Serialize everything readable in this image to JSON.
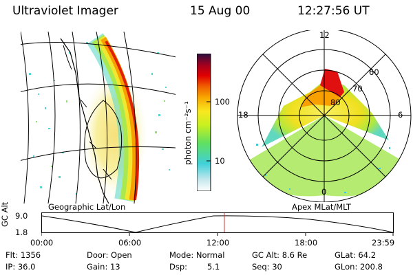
{
  "header": {
    "instrument": "Ultraviolet Imager",
    "date": "15 Aug 00",
    "time": "12:27:56 UT"
  },
  "colorbar": {
    "unit_label": "photon cm⁻²s⁻¹",
    "ticks": [
      "100",
      "10"
    ]
  },
  "left_panel": {
    "caption": "Geographic Lat/Lon"
  },
  "right_panel": {
    "caption": "Apex MLat/MLT",
    "mlt_labels": [
      "12",
      "18",
      "6",
      "0"
    ],
    "lat_labels": [
      "60",
      "70",
      "80"
    ]
  },
  "altitude_plot": {
    "ylabel": "GC Alt",
    "yticks": [
      "9.0",
      "1.8"
    ],
    "xticks": [
      "00:00",
      "06:00",
      "12:00",
      "18:00",
      "23:59"
    ],
    "current_time_fraction": 0.5194
  },
  "info": {
    "flt": "Flt: 1356",
    "ip": "IP: 36.0",
    "door": "Door: Open",
    "gain": "Gain: 13",
    "mode": "Mode: Normal",
    "dsp": "Dsp:",
    "dsp_val": "5.1",
    "gcalt": "GC Alt: 8.6 Re",
    "seq": "Seq: 30",
    "glat": "GLat:  64.2",
    "glon": "GLon: 200.8"
  },
  "colors": {
    "red_marker": "#dd2222",
    "scale": [
      "#ffffff",
      "#c8e8ee",
      "#40d0d8",
      "#60e060",
      "#c8f020",
      "#f8e820",
      "#f8a800",
      "#f06000",
      "#e00000",
      "#a00020",
      "#2a1040"
    ]
  }
}
